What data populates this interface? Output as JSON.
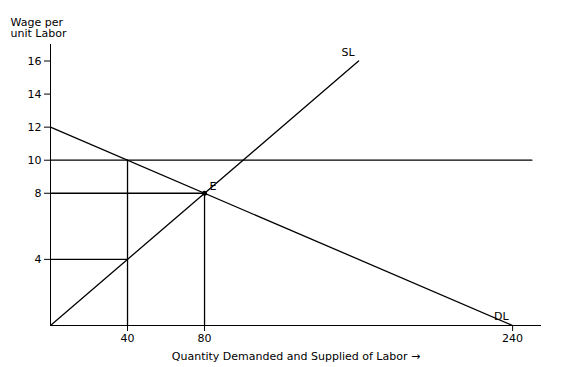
{
  "chart_data": {
    "type": "line",
    "xlabel": "Quantity Demanded and Supplied of Labor",
    "ylabel": "Wage per\nunit Labor",
    "xlim": [
      0,
      255
    ],
    "ylim": [
      0,
      17
    ],
    "xticks": [
      40,
      80,
      240
    ],
    "yticks": [
      4,
      8,
      10,
      12,
      14,
      16
    ],
    "grid": false,
    "series": [
      {
        "name": "DL",
        "color": "black",
        "x": [
          0,
          240
        ],
        "values": [
          12,
          0
        ]
      },
      {
        "name": "SL",
        "color": "black",
        "x": [
          0,
          160
        ],
        "values": [
          0,
          16
        ]
      },
      {
        "color": "black",
        "x": [
          0,
          250
        ],
        "values": [
          10,
          10
        ]
      },
      {
        "color": "black",
        "x": [
          0,
          80
        ],
        "values": [
          8,
          8
        ]
      },
      {
        "color": "black",
        "x": [
          0,
          40
        ],
        "values": [
          4,
          4
        ]
      },
      {
        "color": "black",
        "x": [
          40,
          40
        ],
        "values": [
          0,
          10
        ]
      },
      {
        "color": "black",
        "x": [
          80,
          80
        ],
        "values": [
          0,
          8
        ]
      },
      {
        "name": "E",
        "type": "scatter",
        "color": "black",
        "x": [
          80
        ],
        "values": [
          8
        ]
      }
    ]
  }
}
